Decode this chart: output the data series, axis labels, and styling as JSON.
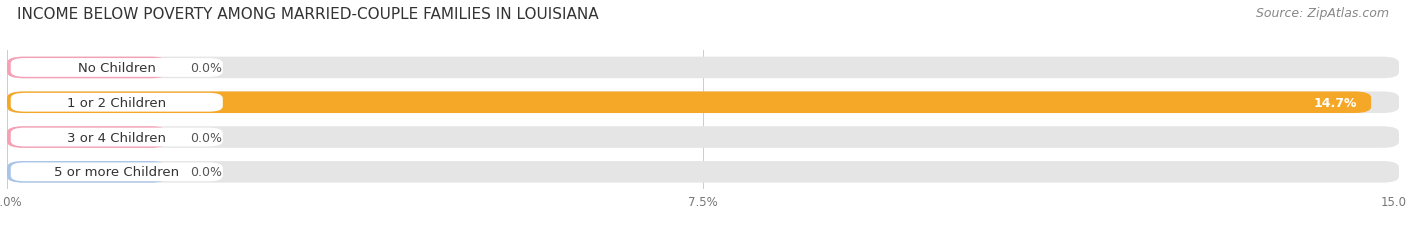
{
  "title": "INCOME BELOW POVERTY AMONG MARRIED-COUPLE FAMILIES IN LOUISIANA",
  "source": "Source: ZipAtlas.com",
  "categories": [
    "No Children",
    "1 or 2 Children",
    "3 or 4 Children",
    "5 or more Children"
  ],
  "values": [
    0.0,
    14.7,
    0.0,
    0.0
  ],
  "bar_colors": [
    "#f5a0b5",
    "#f5a828",
    "#f5a0b5",
    "#aac4e8"
  ],
  "xlim_max": 15.0,
  "xticks": [
    0.0,
    7.5,
    15.0
  ],
  "xticklabels": [
    "0.0%",
    "7.5%",
    "15.0%"
  ],
  "background_color": "#f7f7f7",
  "bar_bg_color": "#e5e5e5",
  "title_fontsize": 11,
  "source_fontsize": 9,
  "label_fontsize": 9.5,
  "value_fontsize": 9,
  "tick_fontsize": 8.5
}
